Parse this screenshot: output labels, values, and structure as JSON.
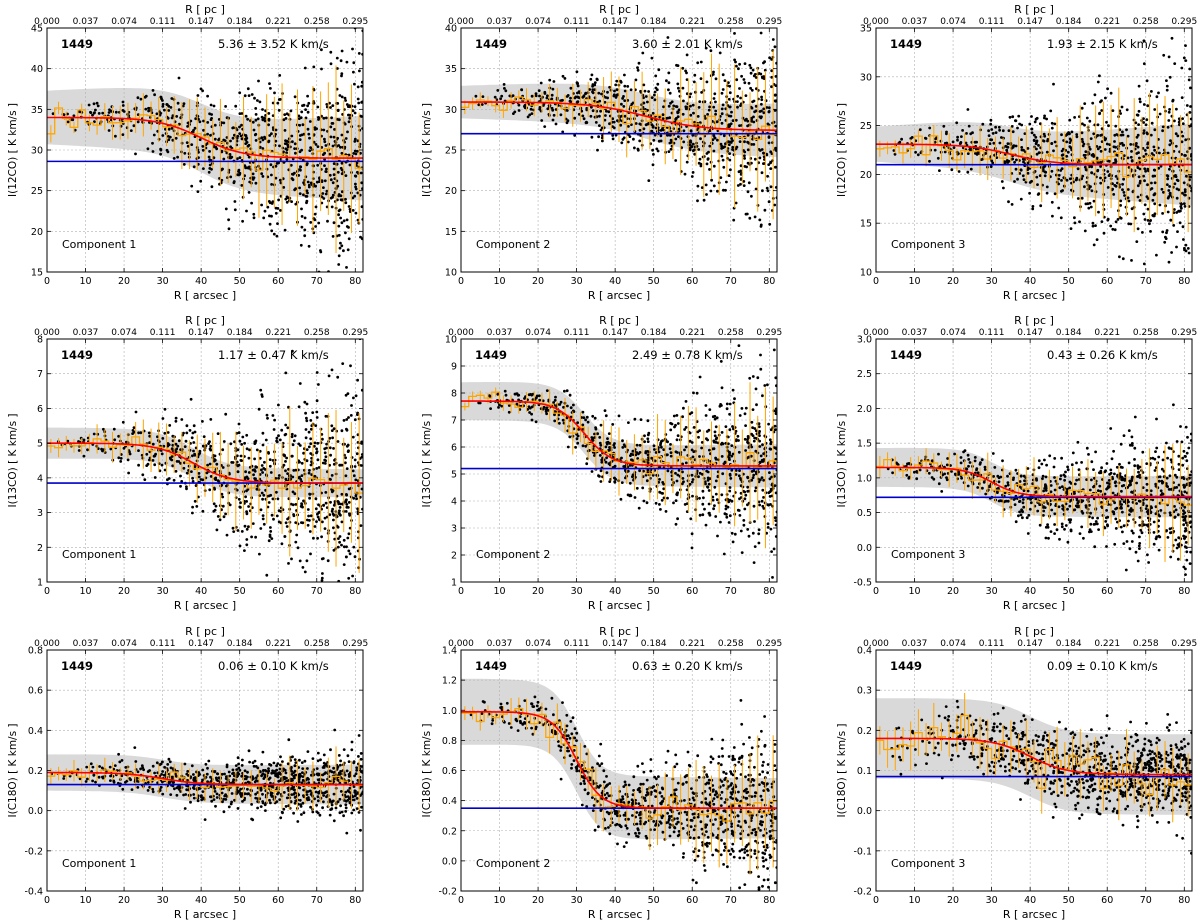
{
  "figure": {
    "top_axis_label": "R [ pc ]",
    "bottom_axis_label": "R [ arcsec ]",
    "top_ticks": [
      "0.000",
      "0.037",
      "0.074",
      "0.111",
      "0.147",
      "0.184",
      "0.221",
      "0.258",
      "0.295"
    ],
    "colors": {
      "points": "#000000",
      "band": "#d9d9d9",
      "median": "#ffa500",
      "fit": "#ff0000",
      "baseline": "#0000cc",
      "grid": "#b0b0b0"
    }
  },
  "chart_data": [
    {
      "type": "scatter",
      "row": 0,
      "col": 0,
      "source": "1449",
      "component": "Component 1",
      "annotation": "5.36 ± 3.52 K km/s",
      "ylabel": "I(12CO) [ K km/s ]",
      "iso": "12",
      "mol": "CO",
      "xlabel": "R [ arcsec ]",
      "xlim": [
        0,
        82
      ],
      "xticks": [
        0,
        10,
        20,
        30,
        40,
        50,
        60,
        70,
        80
      ],
      "ylim": [
        15,
        45
      ],
      "yticks": [
        15,
        20,
        25,
        30,
        35,
        40,
        45
      ],
      "baseline": 28.6,
      "fit_start": 34.0,
      "fit_end": 29.0,
      "fit_mid": 40,
      "fit_width": 14,
      "band_start": 3.3,
      "band_end": 5.2,
      "scatter_start": 1.0,
      "scatter_end": 12.0,
      "median_noise": 1.5
    },
    {
      "type": "scatter",
      "row": 0,
      "col": 1,
      "source": "1449",
      "component": "Component 2",
      "annotation": "3.60 ± 2.01 K km/s",
      "ylabel": "I(12CO) [ K km/s ]",
      "iso": "12",
      "mol": "CO",
      "xlabel": "R [ arcsec ]",
      "xlim": [
        0,
        82
      ],
      "xticks": [
        0,
        10,
        20,
        30,
        40,
        50,
        60,
        70,
        80
      ],
      "ylim": [
        10,
        40
      ],
      "yticks": [
        10,
        15,
        20,
        25,
        30,
        35,
        40
      ],
      "baseline": 27.0,
      "fit_start": 30.9,
      "fit_end": 27.4,
      "fit_mid": 48,
      "fit_width": 18,
      "band_start": 2.0,
      "band_end": 3.3,
      "scatter_start": 0.8,
      "scatter_end": 10.0,
      "median_noise": 1.3
    },
    {
      "type": "scatter",
      "row": 0,
      "col": 2,
      "source": "1449",
      "component": "Component 3",
      "annotation": "1.93 ± 2.15 K km/s",
      "ylabel": "I(12CO) [ K km/s ]",
      "iso": "12",
      "mol": "CO",
      "xlabel": "R [ arcsec ]",
      "xlim": [
        0,
        82
      ],
      "xticks": [
        0,
        10,
        20,
        30,
        40,
        50,
        60,
        70,
        80
      ],
      "ylim": [
        10,
        35
      ],
      "yticks": [
        10,
        15,
        20,
        25,
        30,
        35
      ],
      "baseline": 21.0,
      "fit_start": 23.1,
      "fit_end": 21.0,
      "fit_mid": 35,
      "fit_width": 14,
      "band_start": 1.8,
      "band_end": 4.2,
      "scatter_start": 0.8,
      "scatter_end": 9.0,
      "median_noise": 1.2
    },
    {
      "type": "scatter",
      "row": 1,
      "col": 0,
      "source": "1449",
      "component": "Component 1",
      "annotation": "1.17 ± 0.47 K km/s",
      "ylabel": "I(13CO) [ K km/s ]",
      "iso": "13",
      "mol": "CO",
      "xlabel": "R [ arcsec ]",
      "xlim": [
        0,
        82
      ],
      "xticks": [
        0,
        10,
        20,
        30,
        40,
        50,
        60,
        70,
        80
      ],
      "ylim": [
        1,
        8
      ],
      "yticks": [
        1,
        2,
        3,
        4,
        5,
        6,
        7,
        8
      ],
      "baseline": 3.85,
      "fit_start": 5.0,
      "fit_end": 3.85,
      "fit_mid": 38,
      "fit_width": 12,
      "band_start": 0.45,
      "band_end": 0.4,
      "scatter_start": 0.25,
      "scatter_end": 2.8,
      "median_noise": 0.25
    },
    {
      "type": "scatter",
      "row": 1,
      "col": 1,
      "source": "1449",
      "component": "Component 2",
      "annotation": "2.49 ± 0.78 K km/s",
      "ylabel": "I(13CO) [ K km/s ]",
      "iso": "13",
      "mol": "CO",
      "xlabel": "R [ arcsec ]",
      "xlim": [
        0,
        82
      ],
      "xticks": [
        0,
        10,
        20,
        30,
        40,
        50,
        60,
        70,
        80
      ],
      "ylim": [
        1,
        10
      ],
      "yticks": [
        1,
        2,
        3,
        4,
        5,
        6,
        7,
        8,
        9,
        10
      ],
      "baseline": 5.2,
      "fit_start": 7.7,
      "fit_end": 5.3,
      "fit_mid": 32,
      "fit_width": 9,
      "band_start": 0.7,
      "band_end": 0.8,
      "scatter_start": 0.2,
      "scatter_end": 3.0,
      "median_noise": 0.35
    },
    {
      "type": "scatter",
      "row": 1,
      "col": 2,
      "source": "1449",
      "component": "Component 3",
      "annotation": "0.43 ± 0.26 K km/s",
      "ylabel": "I(13CO) [ K km/s ]",
      "iso": "13",
      "mol": "CO",
      "xlabel": "R [ arcsec ]",
      "xlim": [
        0,
        82
      ],
      "xticks": [
        0,
        10,
        20,
        30,
        40,
        50,
        60,
        70,
        80
      ],
      "ylim": [
        -0.5,
        3.0
      ],
      "yticks": [
        -0.5,
        0.0,
        0.5,
        1.0,
        1.5,
        2.0,
        2.5,
        3.0
      ],
      "baseline": 0.72,
      "fit_start": 1.15,
      "fit_end": 0.73,
      "fit_mid": 30,
      "fit_width": 9,
      "band_start": 0.28,
      "band_end": 0.3,
      "scatter_start": 0.15,
      "scatter_end": 0.9,
      "median_noise": 0.12
    },
    {
      "type": "scatter",
      "row": 2,
      "col": 0,
      "source": "1449",
      "component": "Component 1",
      "annotation": "0.06 ± 0.10 K km/s",
      "ylabel": "I(C18O) [ K km/s ]",
      "iso": "18",
      "mol": "C",
      "mol2": "O",
      "xlabel": "R [ arcsec ]",
      "xlim": [
        0,
        82
      ],
      "xticks": [
        0,
        10,
        20,
        30,
        40,
        50,
        60,
        70,
        80
      ],
      "ylim": [
        -0.4,
        0.8
      ],
      "yticks": [
        -0.4,
        -0.2,
        0.0,
        0.2,
        0.4,
        0.6,
        0.8
      ],
      "baseline": 0.13,
      "fit_start": 0.19,
      "fit_end": 0.13,
      "fit_mid": 30,
      "fit_width": 12,
      "band_start": 0.09,
      "band_end": 0.1,
      "scatter_start": 0.05,
      "scatter_end": 0.16,
      "median_noise": 0.03
    },
    {
      "type": "scatter",
      "row": 2,
      "col": 1,
      "source": "1449",
      "component": "Component 2",
      "annotation": "0.63 ± 0.20 K km/s",
      "ylabel": "I(C18O) [ K km/s ]",
      "iso": "18",
      "mol": "C",
      "mol2": "O",
      "xlabel": "R [ arcsec ]",
      "xlim": [
        0,
        82
      ],
      "xticks": [
        0,
        10,
        20,
        30,
        40,
        50,
        60,
        70,
        80
      ],
      "ylim": [
        -0.2,
        1.4
      ],
      "yticks": [
        -0.2,
        0.0,
        0.2,
        0.4,
        0.6,
        0.8,
        1.0,
        1.2,
        1.4
      ],
      "baseline": 0.35,
      "fit_start": 0.99,
      "fit_end": 0.35,
      "fit_mid": 30,
      "fit_width": 8,
      "band_start": 0.22,
      "band_end": 0.2,
      "scatter_start": 0.06,
      "scatter_end": 0.45,
      "median_noise": 0.08
    },
    {
      "type": "scatter",
      "row": 2,
      "col": 2,
      "source": "1449",
      "component": "Component 3",
      "annotation": "0.09 ± 0.10 K km/s",
      "ylabel": "I(C18O) [ K km/s ]",
      "iso": "18",
      "mol": "C",
      "mol2": "O",
      "xlabel": "R [ arcsec ]",
      "xlim": [
        0,
        82
      ],
      "xticks": [
        0,
        10,
        20,
        30,
        40,
        50,
        60,
        70,
        80
      ],
      "ylim": [
        -0.2,
        0.4
      ],
      "yticks": [
        -0.2,
        -0.1,
        0.0,
        0.1,
        0.2,
        0.3,
        0.4
      ],
      "baseline": 0.085,
      "fit_start": 0.18,
      "fit_end": 0.09,
      "fit_mid": 40,
      "fit_width": 12,
      "band_start": 0.1,
      "band_end": 0.1,
      "scatter_start": 0.06,
      "scatter_end": 0.1,
      "median_noise": 0.05
    }
  ]
}
